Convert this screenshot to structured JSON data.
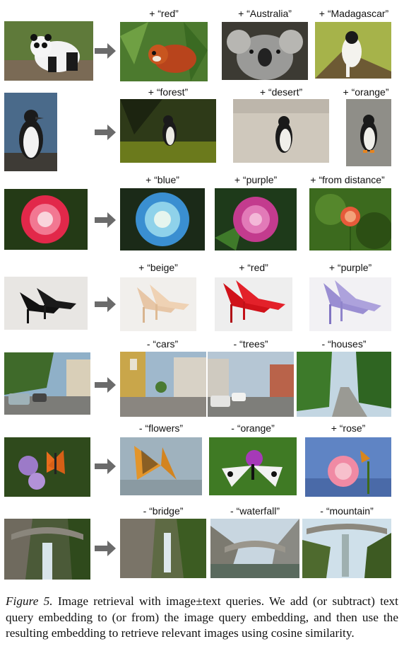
{
  "rows": [
    {
      "query": "panda",
      "results": [
        {
          "label": "+ “red”",
          "content": "red panda"
        },
        {
          "label": "+ “Australia”",
          "content": "koala"
        },
        {
          "label": "+ “Madagascar”",
          "content": "lemur"
        }
      ]
    },
    {
      "query": "penguin",
      "results": [
        {
          "label": "+ “forest”",
          "content": "penguin in forest"
        },
        {
          "label": "+ “desert”",
          "content": "penguin on sand"
        },
        {
          "label": "+ “orange”",
          "content": "penguin orange feet"
        }
      ]
    },
    {
      "query": "red rose",
      "results": [
        {
          "label": "+ “blue”",
          "content": "blue rose"
        },
        {
          "label": "+ “purple”",
          "content": "purple rose"
        },
        {
          "label": "+ “from distance”",
          "content": "distant rose"
        }
      ]
    },
    {
      "query": "black heels",
      "results": [
        {
          "label": "+ “beige”",
          "content": "beige heels"
        },
        {
          "label": "+ “red”",
          "content": "red heels"
        },
        {
          "label": "+ “purple”",
          "content": "purple heels"
        }
      ]
    },
    {
      "query": "street",
      "results": [
        {
          "label": "- “cars”",
          "content": "street no cars"
        },
        {
          "label": "- “trees”",
          "content": "street no trees"
        },
        {
          "label": "- “houses”",
          "content": "road no houses"
        }
      ]
    },
    {
      "query": "butterfly on flowers",
      "results": [
        {
          "label": "- “flowers”",
          "content": "butterfly"
        },
        {
          "label": "- “orange”",
          "content": "white butterfly"
        },
        {
          "label": "+ “rose”",
          "content": "butterfly on rose"
        }
      ]
    },
    {
      "query": "waterfall bridge",
      "results": [
        {
          "label": "- “bridge”",
          "content": "waterfall"
        },
        {
          "label": "- “waterfall”",
          "content": "bridge"
        },
        {
          "label": "- “mountain”",
          "content": "bridge over stream"
        }
      ]
    }
  ],
  "caption": {
    "figure_label": "Figure 5.",
    "text": " Image retrieval with image±text queries.  We add (or subtract) text query embedding to (or from) the image query embedding, and then use the resulting embedding to retrieve relevant images using cosine similarity."
  },
  "colors": {
    "arrow": "#6b6b6b"
  }
}
